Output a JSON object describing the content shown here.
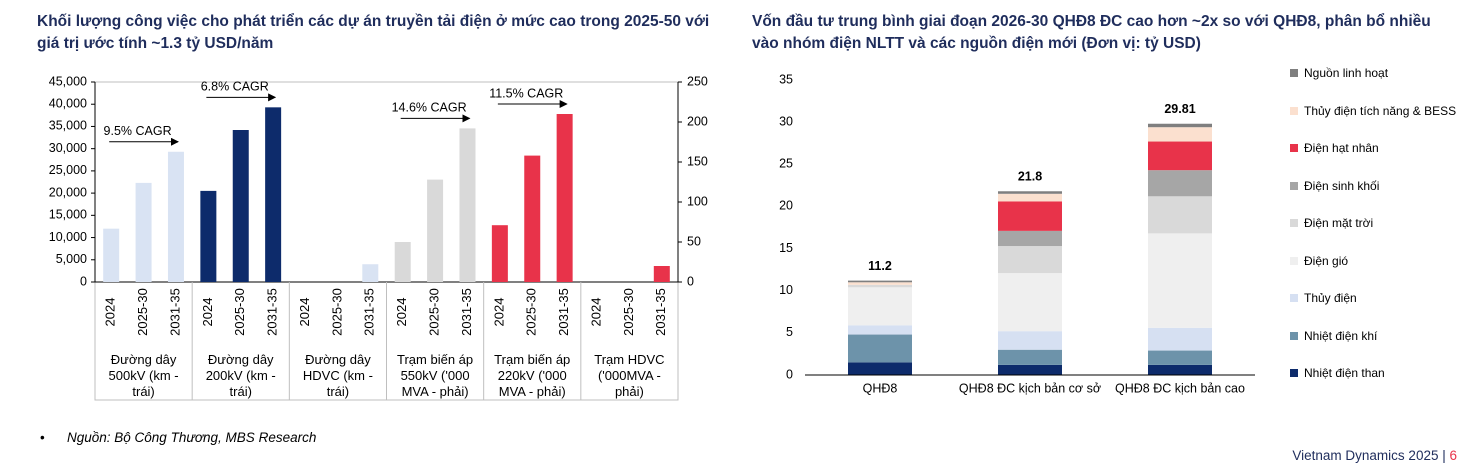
{
  "chart_data": [
    {
      "type": "bar",
      "title": "Khối lượng công việc cho phát triển các dự án truyền tải điện ở mức cao trong 2025-50 với giá trị ước tính ~1.3 tỷ USD/năm",
      "categories": [
        "2024",
        "2025-30",
        "2031-35"
      ],
      "groups": [
        {
          "label": "Đường dây 500kV (km - trái)",
          "color": "#d9e3f3",
          "values": [
            12000,
            22300,
            29300
          ],
          "annotation": "9.5% CAGR"
        },
        {
          "label": "Đường dây 200kV (km - trái)",
          "color": "#0d2b6b",
          "values": [
            20500,
            34200,
            39300
          ],
          "annotation": "6.8% CAGR"
        },
        {
          "label": "Đường dây HDVC (km - trái)",
          "color": "#d9e3f3",
          "values": [
            0,
            0,
            4000
          ]
        },
        {
          "label": "Trạm biến áp 550kV ('000 MVA - phải)",
          "color": "#d9d9d9",
          "axis": "y2",
          "values": [
            50,
            128,
            192
          ],
          "annotation": "14.6% CAGR"
        },
        {
          "label": "Trạm biến áp 220kV ('000 MVA - phải)",
          "color": "#e8334a",
          "axis": "y2",
          "values": [
            71,
            158,
            210
          ],
          "annotation": "11.5% CAGR"
        },
        {
          "label": "Trạm HDVC ('000MVA - phải)",
          "color": "#e8334a",
          "axis": "y2",
          "values": [
            0,
            0,
            20
          ]
        }
      ],
      "ylim": [
        0,
        45000
      ],
      "yticks": [
        0,
        {
          "value": 5000,
          "label": "5,000"
        },
        {
          "value": 10000,
          "label": "10,000"
        },
        {
          "value": 15000,
          "label": "15,000"
        },
        {
          "value": 20000,
          "label": "20,000"
        },
        {
          "value": 25000,
          "label": "25,000"
        },
        {
          "value": 30000,
          "label": "30,000"
        },
        {
          "value": 35000,
          "label": "35,000"
        },
        {
          "value": 40000,
          "label": "40,000"
        },
        {
          "value": 45000,
          "label": "45,000"
        }
      ],
      "y2lim": [
        0,
        250
      ],
      "y2ticks": [
        0,
        50,
        100,
        150,
        200,
        250
      ]
    },
    {
      "type": "bar",
      "stacked": true,
      "title": "Vốn đầu tư trung bình giai đoạn 2026-30 QHĐ8 ĐC cao hơn ~2x so với QHĐ8, phân bổ nhiều vào nhóm điện NLTT và các nguồn điện mới (Đơn vị: tỷ USD)",
      "categories": [
        "QHĐ8",
        "QHĐ8 ĐC kịch bản cơ sở",
        "QHĐ8 ĐC kịch bản cao"
      ],
      "totals": [
        11.2,
        21.8,
        29.81
      ],
      "series": [
        {
          "name": "Nhiệt điện than",
          "color": "#0d2b6b",
          "values": [
            1.5,
            1.2,
            1.2
          ]
        },
        {
          "name": "Nhiệt điện khí",
          "color": "#6d93aa",
          "values": [
            3.3,
            1.8,
            1.7
          ]
        },
        {
          "name": "Thủy điện",
          "color": "#d6e0f2",
          "values": [
            1.1,
            2.2,
            2.7
          ]
        },
        {
          "name": "Điện gió",
          "color": "#efefef",
          "values": [
            4.5,
            6.9,
            11.2
          ]
        },
        {
          "name": "Điện mặt trời",
          "color": "#d9d9d9",
          "values": [
            0.3,
            3.2,
            4.4
          ]
        },
        {
          "name": "Điện sinh khối",
          "color": "#a6a6a6",
          "values": [
            0,
            1.8,
            3.1
          ]
        },
        {
          "name": "Điện hạt nhân",
          "color": "#e8334a",
          "values": [
            0,
            3.5,
            3.4
          ]
        },
        {
          "name": "Thủy điện tích năng & BESS",
          "color": "#fbe0cf",
          "values": [
            0.3,
            0.9,
            1.7
          ]
        },
        {
          "name": "Nguồn linh hoạt",
          "color": "#7f7f7f",
          "values": [
            0.2,
            0.3,
            0.41
          ]
        }
      ],
      "ylim": [
        0,
        35
      ],
      "yticks": [
        0,
        5,
        10,
        15,
        20,
        25,
        30,
        35
      ]
    }
  ],
  "footer": {
    "source": "Nguồn: Bộ Công Thương, MBS Research",
    "report": "Vietnam Dynamics 2025",
    "page": 6
  }
}
